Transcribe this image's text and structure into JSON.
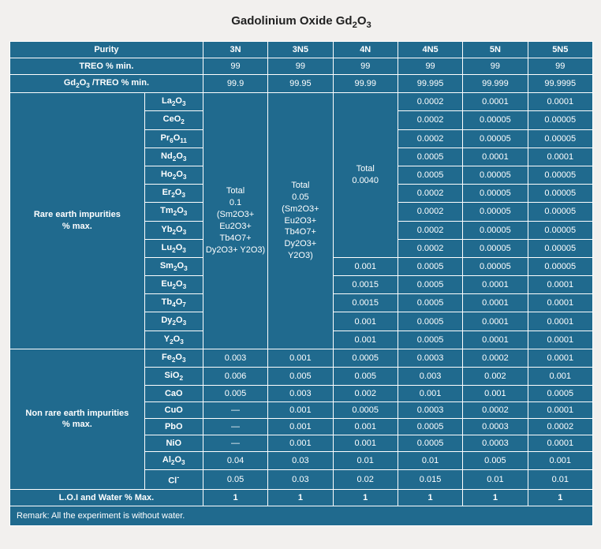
{
  "title": "Gadolinium Oxide Gd2O3",
  "header": {
    "purity": "Purity",
    "grades": [
      "3N",
      "3N5",
      "4N",
      "4N5",
      "5N",
      "5N5"
    ]
  },
  "rows": {
    "treo": {
      "label": "TREO % min.",
      "v": [
        "99",
        "99",
        "99",
        "99",
        "99",
        "99"
      ]
    },
    "ratio": {
      "label": "Gd2O3 /TREO % min.",
      "v": [
        "99.9",
        "99.95",
        "99.99",
        "99.995",
        "99.999",
        "99.9995"
      ]
    }
  },
  "rare": {
    "label": "Rare earth impurities % max.",
    "merge3N": "Total\n0.1\n(Sm2O3+\nEu2O3+\nTb4O7+\nDy2O3+ Y2O3)",
    "merge3N5": "Total\n0.05\n(Sm2O3+\nEu2O3+\nTb4O7+\nDy2O3+\nY2O3)",
    "merge4N": "Total\n0.0040",
    "oxides": [
      "La2O3",
      "CeO2",
      "Pr6O11",
      "Nd2O3",
      "Ho2O3",
      "Er2O3",
      "Tm2O3",
      "Yb2O3",
      "Lu2O3",
      "Sm2O3",
      "Eu2O3",
      "Tb4O7",
      "Dy2O3",
      "Y2O3"
    ],
    "c4N": {
      "Sm2O3": "0.001",
      "Eu2O3": "0.0015",
      "Tb4O7": "0.0015",
      "Dy2O3": "0.001",
      "Y2O3": "0.001"
    },
    "c4N5": {
      "La2O3": "0.0002",
      "CeO2": "0.0002",
      "Pr6O11": "0.0002",
      "Nd2O3": "0.0005",
      "Ho2O3": "0.0005",
      "Er2O3": "0.0002",
      "Tm2O3": "0.0002",
      "Yb2O3": "0.0002",
      "Lu2O3": "0.0002",
      "Sm2O3": "0.0005",
      "Eu2O3": "0.0005",
      "Tb4O7": "0.0005",
      "Dy2O3": "0.0005",
      "Y2O3": "0.0005"
    },
    "c5N": {
      "La2O3": "0.0001",
      "CeO2": "0.00005",
      "Pr6O11": "0.00005",
      "Nd2O3": "0.0001",
      "Ho2O3": "0.00005",
      "Er2O3": "0.00005",
      "Tm2O3": "0.00005",
      "Yb2O3": "0.00005",
      "Lu2O3": "0.00005",
      "Sm2O3": "0.00005",
      "Eu2O3": "0.0001",
      "Tb4O7": "0.0001",
      "Dy2O3": "0.0001",
      "Y2O3": "0.0001"
    },
    "c5N5": {
      "La2O3": "0.0001",
      "CeO2": "0.00005",
      "Pr6O11": "0.00005",
      "Nd2O3": "0.0001",
      "Ho2O3": "0.00005",
      "Er2O3": "0.00005",
      "Tm2O3": "0.00005",
      "Yb2O3": "0.00005",
      "Lu2O3": "0.00005",
      "Sm2O3": "0.00005",
      "Eu2O3": "0.0001",
      "Tb4O7": "0.0001",
      "Dy2O3": "0.0001",
      "Y2O3": "0.0001"
    }
  },
  "nonrare": {
    "label": "Non rare earth impurities % max.",
    "items": [
      {
        "n": "Fe2O3",
        "v": [
          "0.003",
          "0.001",
          "0.0005",
          "0.0003",
          "0.0002",
          "0.0001"
        ]
      },
      {
        "n": "SiO2",
        "v": [
          "0.006",
          "0.005",
          "0.005",
          "0.003",
          "0.002",
          "0.001"
        ]
      },
      {
        "n": "CaO",
        "v": [
          "0.005",
          "0.003",
          "0.002",
          "0.001",
          "0.001",
          "0.0005"
        ]
      },
      {
        "n": "CuO",
        "v": [
          "—",
          "0.001",
          "0.0005",
          "0.0003",
          "0.0002",
          "0.0001"
        ]
      },
      {
        "n": "PbO",
        "v": [
          "—",
          "0.001",
          "0.001",
          "0.0005",
          "0.0003",
          "0.0002"
        ]
      },
      {
        "n": "NiO",
        "v": [
          "—",
          "0.001",
          "0.001",
          "0.0005",
          "0.0003",
          "0.0001"
        ]
      },
      {
        "n": "Al2O3",
        "v": [
          "0.04",
          "0.03",
          "0.01",
          "0.01",
          "0.005",
          "0.001"
        ]
      },
      {
        "n": "Cl-",
        "v": [
          "0.05",
          "0.03",
          "0.02",
          "0.015",
          "0.01",
          "0.01"
        ]
      }
    ]
  },
  "loi": {
    "label": "L.O.I and Water  % Max.",
    "v": [
      "1",
      "1",
      "1",
      "1",
      "1",
      "1"
    ]
  },
  "remark": "Remark: All the experiment is without water.",
  "chem": {
    "La2O3": "La<sub>2</sub>O<sub>3</sub>",
    "CeO2": "CeO<sub>2</sub>",
    "Pr6O11": "Pr<sub>6</sub>O<sub>11</sub>",
    "Nd2O3": "Nd<sub>2</sub>O<sub>3</sub>",
    "Ho2O3": "Ho<sub>2</sub>O<sub>3</sub>",
    "Er2O3": "Er<sub>2</sub>O<sub>3</sub>",
    "Tm2O3": "Tm<sub>2</sub>O<sub>3</sub>",
    "Yb2O3": "Yb<sub>2</sub>O<sub>3</sub>",
    "Lu2O3": "Lu<sub>2</sub>O<sub>3</sub>",
    "Sm2O3": "Sm<sub>2</sub>O<sub>3</sub>",
    "Eu2O3": "Eu<sub>2</sub>O<sub>3</sub>",
    "Tb4O7": "Tb<sub>4</sub>O<sub>7</sub>",
    "Dy2O3": "Dy<sub>2</sub>O<sub>3</sub>",
    "Y2O3": "Y<sub>2</sub>O<sub>3</sub>",
    "Fe2O3": "Fe<sub>2</sub>O<sub>3</sub>",
    "SiO2": "SiO<sub>2</sub>",
    "CaO": "CaO",
    "CuO": "CuO",
    "PbO": "PbO",
    "NiO": "NiO",
    "Al2O3": "Al<sub>2</sub>O<sub>3</sub>",
    "Cl-": "Cl<sup>-</sup>",
    "Gd2O3": "Gd<sub>2</sub>O<sub>3</sub>"
  }
}
